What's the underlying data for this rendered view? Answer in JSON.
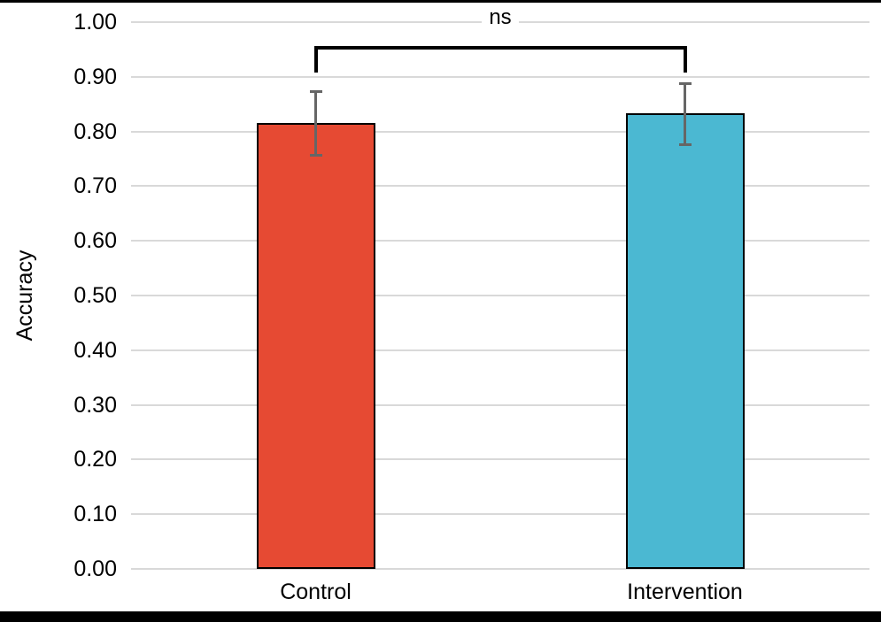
{
  "figure": {
    "background_color": "#FFFFFF",
    "frame_color": "#000000"
  },
  "chart_data": {
    "type": "bar",
    "title": "",
    "xlabel": "",
    "ylabel": "Accuracy",
    "categories": [
      "Control",
      "Intervention"
    ],
    "series": [
      {
        "name": "Accuracy",
        "values": [
          0.815,
          0.833
        ],
        "error_low": [
          0.755,
          0.775
        ],
        "error_high": [
          0.875,
          0.89
        ],
        "bar_colors": [
          "#E64A33",
          "#4BB8D2"
        ]
      }
    ],
    "ylim": [
      0.0,
      1.0
    ],
    "ytick_step": 0.1,
    "ytick_labels": [
      "0.00",
      "0.10",
      "0.20",
      "0.30",
      "0.40",
      "0.50",
      "0.60",
      "0.70",
      "0.80",
      "0.90",
      "1.00"
    ],
    "grid": true,
    "gridline_color": "#D9D9D9",
    "bar_border_color": "#000000",
    "error_bar_color": "#666666",
    "legend": "none",
    "annotation": {
      "label": "ns",
      "connects": [
        "Control",
        "Intervention"
      ],
      "bracket_color": "#000000"
    }
  }
}
